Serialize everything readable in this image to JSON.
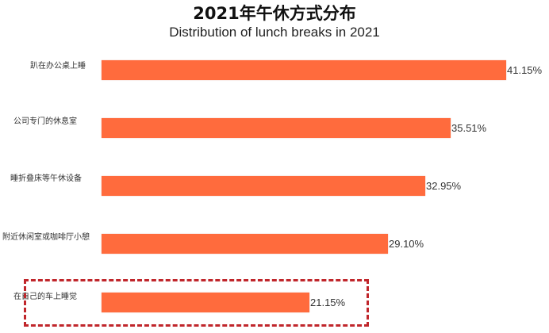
{
  "header": {
    "title": "2021年午休方式分布",
    "subtitle": "Distribution of lunch breaks in 2021"
  },
  "colors": {
    "bar": "#ff6b3d",
    "highlight_border": "#c0262b"
  },
  "chart_data": {
    "type": "bar",
    "orientation": "horizontal",
    "title": "2021年午休方式分布",
    "subtitle": "Distribution of lunch breaks in 2021",
    "categories": [
      "趴在办公桌上睡",
      "公司专门的休息室",
      "睡折叠床等午休设备",
      "附近休闲室或咖啡厅小憩",
      "在自己的车上睡觉"
    ],
    "values": [
      41.15,
      35.51,
      32.95,
      29.1,
      21.15
    ],
    "value_labels": [
      "41.15%",
      "35.51%",
      "32.95%",
      "29.10%",
      "21.15%"
    ],
    "xlabel": "",
    "ylabel": "",
    "unit": "%",
    "grid": false,
    "legend": null,
    "annotations": [
      {
        "type": "dashed-box",
        "target": "在自己的车上睡觉",
        "color": "#c0262b"
      }
    ]
  },
  "rows": [
    {
      "label": "趴在办公桌上睡",
      "value": 41.15,
      "value_label": "41.15%"
    },
    {
      "label": "公司专门的休息室",
      "value": 35.51,
      "value_label": "35.51%"
    },
    {
      "label": "睡折叠床等午休设备",
      "value": 32.95,
      "value_label": "32.95%"
    },
    {
      "label": "附近休闲室或咖啡厅小憩",
      "value": 29.1,
      "value_label": "29.10%"
    },
    {
      "label": "在自己的车上睡觉",
      "value": 21.15,
      "value_label": "21.15%"
    }
  ]
}
